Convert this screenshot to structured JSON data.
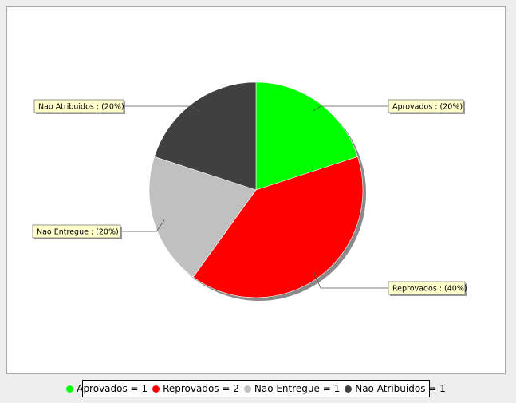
{
  "chart_data": {
    "type": "pie",
    "title": "",
    "slices": [
      {
        "name": "Aprovados",
        "value": 1,
        "percent_label": "Aprovados : (20%)",
        "legend_label": "Aprovados = 1",
        "color": "#00ff00"
      },
      {
        "name": "Reprovados",
        "value": 2,
        "percent_label": "Reprovados : (40%)",
        "legend_label": "Reprovados = 2",
        "color": "#ff0000"
      },
      {
        "name": "Nao Entregue",
        "value": 1,
        "percent_label": "Nao Entregue : (20%)",
        "legend_label": "Nao Entregue = 1",
        "color": "#c0c0c0"
      },
      {
        "name": "Nao Atribuidos",
        "value": 1,
        "percent_label": "Nao Atribuidos : (20%)",
        "legend_label": "Nao Atribuidos = 1",
        "color": "#404040"
      }
    ],
    "legend_position": "bottom"
  }
}
